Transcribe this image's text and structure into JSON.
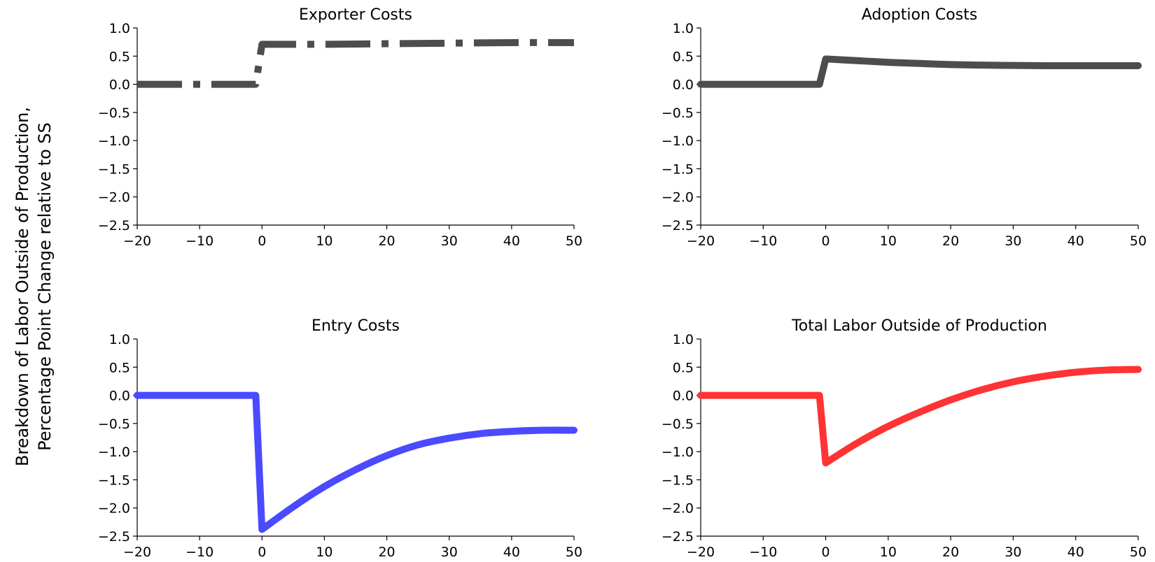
{
  "figure": {
    "ylabel_line1": "Breakdown of Labor Outside of Production,",
    "ylabel_line2": "Percentage Point Change relative to SS"
  },
  "chart_data": [
    {
      "type": "line",
      "title": "Exporter Costs",
      "xlabel": "",
      "ylabel": "",
      "xlim": [
        -20,
        50
      ],
      "ylim": [
        -2.5,
        1.0
      ],
      "xticks": [
        "−20",
        "−10",
        "0",
        "10",
        "20",
        "30",
        "40",
        "50"
      ],
      "yticks": [
        "1.0",
        "0.5",
        "0.0",
        "−0.5",
        "−1.0",
        "−1.5",
        "−2.0",
        "−2.5"
      ],
      "grid": false,
      "series": [
        {
          "color": "#4d4d4d",
          "style": "dashdot",
          "x": [
            -20,
            -1,
            0,
            5,
            10,
            20,
            30,
            40,
            50
          ],
          "y": [
            0,
            0,
            0.71,
            0.71,
            0.71,
            0.72,
            0.73,
            0.74,
            0.74
          ]
        }
      ]
    },
    {
      "type": "line",
      "title": "Adoption Costs",
      "xlabel": "",
      "ylabel": "",
      "xlim": [
        -20,
        50
      ],
      "ylim": [
        -2.5,
        1.0
      ],
      "xticks": [
        "−20",
        "−10",
        "0",
        "10",
        "20",
        "30",
        "40",
        "50"
      ],
      "yticks": [
        "1.0",
        "0.5",
        "0.0",
        "−0.5",
        "−1.0",
        "−1.5",
        "−2.0",
        "−2.5"
      ],
      "grid": false,
      "series": [
        {
          "color": "#4d4d4d",
          "style": "solid",
          "x": [
            -20,
            -1,
            0,
            5,
            10,
            15,
            20,
            25,
            30,
            35,
            40,
            45,
            50
          ],
          "y": [
            0,
            0,
            0.45,
            0.42,
            0.39,
            0.37,
            0.35,
            0.34,
            0.335,
            0.33,
            0.33,
            0.33,
            0.33
          ]
        }
      ]
    },
    {
      "type": "line",
      "title": "Entry Costs",
      "xlabel": "",
      "ylabel": "",
      "xlim": [
        -20,
        50
      ],
      "ylim": [
        -2.5,
        1.0
      ],
      "xticks": [
        "−20",
        "−10",
        "0",
        "10",
        "20",
        "30",
        "40",
        "50"
      ],
      "yticks": [
        "1.0",
        "0.5",
        "0.0",
        "−0.5",
        "−1.0",
        "−1.5",
        "−2.0",
        "−2.5"
      ],
      "grid": false,
      "series": [
        {
          "color": "#4a4aff",
          "style": "solid",
          "x": [
            -20,
            -1,
            0,
            5,
            10,
            15,
            20,
            25,
            30,
            35,
            40,
            45,
            50
          ],
          "y": [
            0,
            0,
            -2.38,
            -1.98,
            -1.62,
            -1.32,
            -1.07,
            -0.88,
            -0.76,
            -0.68,
            -0.64,
            -0.62,
            -0.62
          ]
        }
      ]
    },
    {
      "type": "line",
      "title": "Total Labor Outside of Production",
      "xlabel": "",
      "ylabel": "",
      "xlim": [
        -20,
        50
      ],
      "ylim": [
        -2.5,
        1.0
      ],
      "xticks": [
        "−20",
        "−10",
        "0",
        "10",
        "20",
        "30",
        "40",
        "50"
      ],
      "yticks": [
        "1.0",
        "0.5",
        "0.0",
        "−0.5",
        "−1.0",
        "−1.5",
        "−2.0",
        "−2.5"
      ],
      "grid": false,
      "series": [
        {
          "color": "#ff3333",
          "style": "solid",
          "x": [
            -20,
            -1,
            0,
            5,
            10,
            15,
            20,
            25,
            30,
            35,
            40,
            45,
            50
          ],
          "y": [
            0,
            0,
            -1.2,
            -0.85,
            -0.55,
            -0.3,
            -0.08,
            0.1,
            0.24,
            0.34,
            0.41,
            0.45,
            0.46
          ]
        }
      ]
    }
  ]
}
